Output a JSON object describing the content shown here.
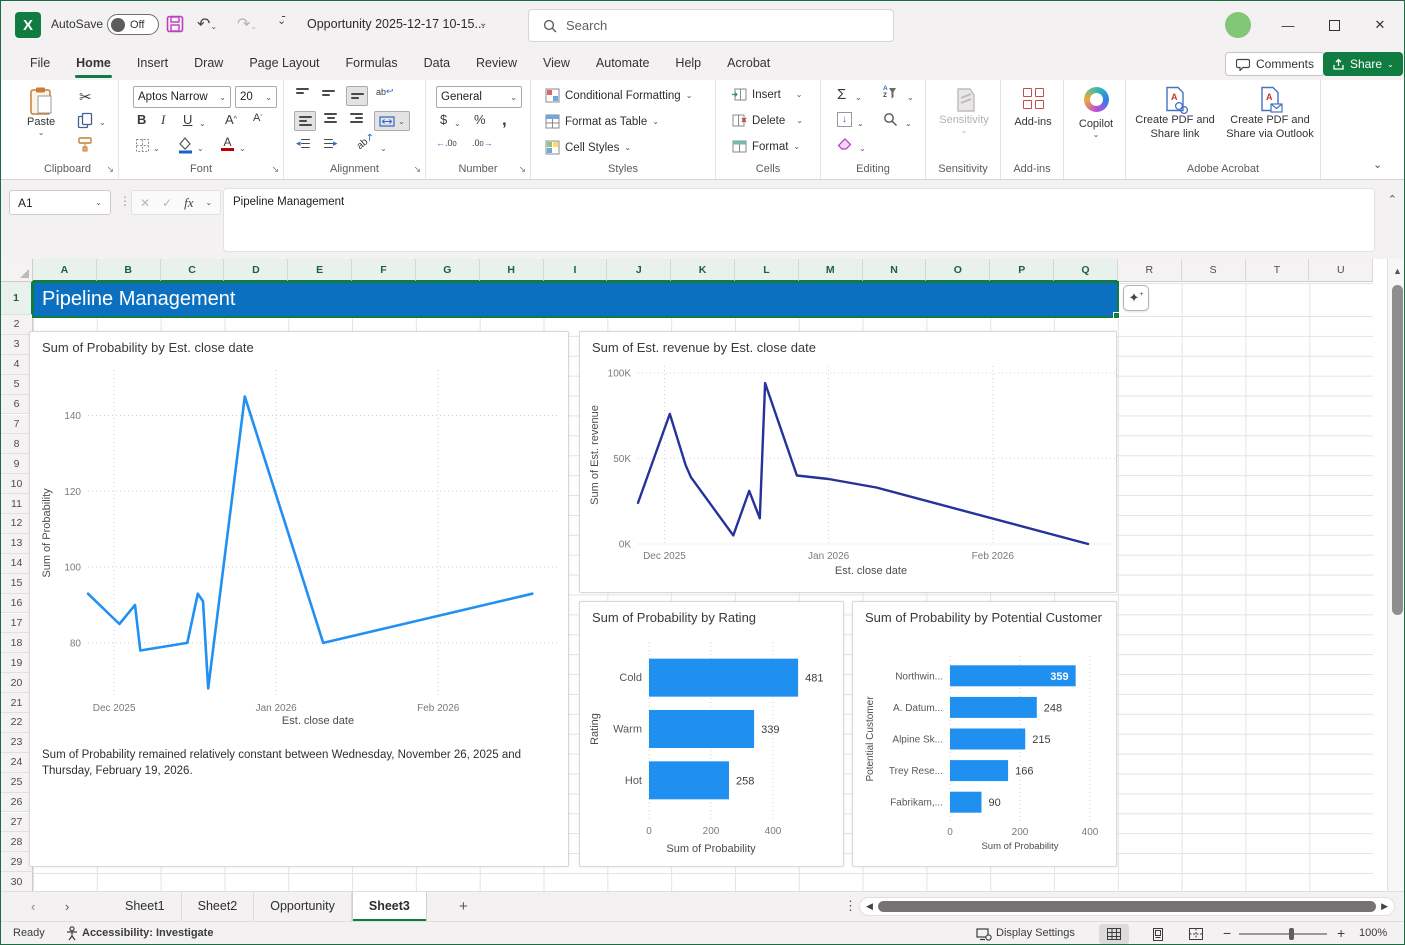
{
  "titlebar": {
    "app_initial": "X",
    "autosave_label": "AutoSave",
    "autosave_state": "Off",
    "doc_title": "Opportunity 2025-12-17 10-15...",
    "search_placeholder": "Search"
  },
  "ribbon_tabs": [
    "File",
    "Home",
    "Insert",
    "Draw",
    "Page Layout",
    "Formulas",
    "Data",
    "Review",
    "View",
    "Automate",
    "Help",
    "Acrobat"
  ],
  "active_ribbon_tab": "Home",
  "top_actions": {
    "comments": "Comments",
    "share": "Share"
  },
  "ribbon": {
    "clipboard": {
      "label": "Clipboard",
      "paste": "Paste"
    },
    "font": {
      "label": "Font",
      "font_name": "Aptos Narrow",
      "font_size": "20",
      "bold": "B",
      "italic": "I",
      "underline": "U"
    },
    "alignment": {
      "label": "Alignment"
    },
    "number": {
      "label": "Number",
      "format": "General",
      "currency": "$",
      "percent": "%",
      "comma": ","
    },
    "styles": {
      "label": "Styles",
      "items": [
        "Conditional Formatting",
        "Format as Table",
        "Cell Styles"
      ]
    },
    "cells": {
      "label": "Cells",
      "items": [
        "Insert",
        "Delete",
        "Format"
      ]
    },
    "editing": {
      "label": "Editing",
      "autosum": "Σ"
    },
    "sensitivity": {
      "label": "Sensitivity",
      "button": "Sensitivity"
    },
    "addins": {
      "label": "Add-ins",
      "button": "Add-ins"
    },
    "copilot": {
      "button": "Copilot"
    },
    "acrobat": {
      "label": "Adobe Acrobat",
      "btn1": "Create PDF and Share link",
      "btn2": "Create PDF and Share via Outlook"
    }
  },
  "formula_bar": {
    "name_box": "A1",
    "fx": "fx",
    "formula": "Pipeline Management"
  },
  "sheet": {
    "columns": [
      "A",
      "B",
      "C",
      "D",
      "E",
      "F",
      "G",
      "H",
      "I",
      "J",
      "K",
      "L",
      "M",
      "N",
      "O",
      "P",
      "Q",
      "R",
      "S",
      "T",
      "U"
    ],
    "selected_columns_count": 17,
    "row_count": 30,
    "selected_row": 1,
    "title_cell": "Pipeline Management",
    "title_cell_fill": "#0b70c0"
  },
  "chart_data": [
    {
      "type": "line",
      "title": "Sum of Probability by Est. close date",
      "xlabel": "Est. close date",
      "ylabel": "Sum of Probability",
      "x_unit": "days since 2025-11-26",
      "points": [
        [
          0,
          93
        ],
        [
          6,
          85
        ],
        [
          9,
          90
        ],
        [
          10,
          78
        ],
        [
          19,
          80
        ],
        [
          21,
          93
        ],
        [
          22,
          91
        ],
        [
          23,
          68
        ],
        [
          30,
          145
        ],
        [
          45,
          80
        ],
        [
          85,
          93
        ]
      ],
      "xlim": [
        0,
        88
      ],
      "ylim": [
        66,
        152
      ],
      "xticks": [
        {
          "v": 5,
          "label": "Dec 2025"
        },
        {
          "v": 36,
          "label": "Jan 2026"
        },
        {
          "v": 67,
          "label": "Feb 2026"
        }
      ],
      "yticks": [
        {
          "v": 80,
          "label": "80"
        },
        {
          "v": 100,
          "label": "100"
        },
        {
          "v": 120,
          "label": "120"
        },
        {
          "v": 140,
          "label": "140"
        }
      ],
      "color": "#2190f2",
      "grid": "dotted",
      "insight": "Sum of Probability remained relatively constant between Wednesday, November 26, 2025 and Thursday, February 19, 2026."
    },
    {
      "type": "line",
      "title": "Sum of Est. revenue by Est. close date",
      "xlabel": "Est. close date",
      "ylabel": "Sum of Est. revenue",
      "x_unit": "days since 2025-11-26",
      "value_unit": "thousands",
      "points": [
        [
          0,
          24
        ],
        [
          6,
          76
        ],
        [
          9,
          46
        ],
        [
          10,
          39
        ],
        [
          18,
          5
        ],
        [
          21,
          31
        ],
        [
          23,
          15
        ],
        [
          24,
          94
        ],
        [
          30,
          40
        ],
        [
          36,
          38
        ],
        [
          45,
          33
        ],
        [
          85,
          0
        ]
      ],
      "xlim": [
        0,
        88
      ],
      "ylim": [
        0,
        104
      ],
      "xticks": [
        {
          "v": 5,
          "label": "Dec 2025"
        },
        {
          "v": 36,
          "label": "Jan 2026"
        },
        {
          "v": 67,
          "label": "Feb 2026"
        }
      ],
      "yticks": [
        {
          "v": 0,
          "label": "0K"
        },
        {
          "v": 50,
          "label": "50K"
        },
        {
          "v": 100,
          "label": "100K"
        }
      ],
      "color": "#26329b",
      "grid": "dotted"
    },
    {
      "type": "barh",
      "title": "Sum of Probability by Rating",
      "xlabel": "Sum of Probability",
      "ylabel": "Rating",
      "categories": [
        "Cold",
        "Warm",
        "Hot"
      ],
      "values": [
        481,
        339,
        258
      ],
      "xticks": [
        {
          "v": 0,
          "label": "0"
        },
        {
          "v": 200,
          "label": "200"
        },
        {
          "v": 400,
          "label": "400"
        }
      ],
      "color": "#1f90f0",
      "grid": "dotted"
    },
    {
      "type": "barh",
      "title": "Sum of Probability by Potential Customer",
      "xlabel": "Sum of Probability",
      "ylabel": "Potential Customer",
      "categories": [
        "Northwin...",
        "A. Datum...",
        "Alpine Sk...",
        "Trey Rese...",
        "Fabrikam,..."
      ],
      "values": [
        359,
        248,
        215,
        166,
        90
      ],
      "xticks": [
        {
          "v": 0,
          "label": "0"
        },
        {
          "v": 200,
          "label": "200"
        },
        {
          "v": 400,
          "label": "400"
        }
      ],
      "color": "#1f90f0",
      "first_value_inside": true,
      "grid": "dotted"
    }
  ],
  "sheet_tabs": {
    "tabs": [
      "Sheet1",
      "Sheet2",
      "Opportunity",
      "Sheet3"
    ],
    "active": "Sheet3"
  },
  "status_bar": {
    "ready": "Ready",
    "accessibility": "Accessibility: Investigate",
    "display_settings": "Display Settings",
    "zoom": "100%"
  },
  "colors": {
    "excel_green": "#107c41",
    "title_fill": "#0b70c0",
    "line1": "#2190f2",
    "line2": "#26329b",
    "bars": "#1f90f0"
  }
}
